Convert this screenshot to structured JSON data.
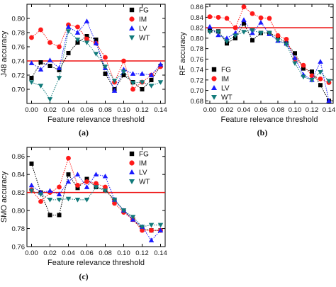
{
  "chart_data": [
    {
      "type": "line",
      "panel_label": "(a)",
      "xlabel": "Feature relevance threshold",
      "ylabel": "J48 accuracy",
      "xlim": [
        -0.005,
        0.145
      ],
      "ylim": [
        0.68,
        0.82
      ],
      "x_ticks": [
        "0.00",
        "0.02",
        "0.04",
        "0.06",
        "0.08",
        "0.10",
        "0.12",
        "0.14"
      ],
      "y_ticks": [
        "0.70",
        "0.72",
        "0.74",
        "0.76",
        "0.78",
        "0.80"
      ],
      "legend_position": "top-right",
      "x": [
        0.0,
        0.01,
        0.02,
        0.03,
        0.04,
        0.05,
        0.06,
        0.07,
        0.08,
        0.09,
        0.1,
        0.11,
        0.12,
        0.13,
        0.14
      ],
      "reference_line": 0.74,
      "series": [
        {
          "name": "FG",
          "color": "#000000",
          "marker": "square",
          "values": [
            0.716,
            0.738,
            0.733,
            0.727,
            0.751,
            0.766,
            0.775,
            0.77,
            0.722,
            0.7,
            0.72,
            0.71,
            0.7,
            0.713,
            0.733
          ]
        },
        {
          "name": "IM",
          "color": "#ff1a1a",
          "marker": "circle",
          "values": [
            0.773,
            0.784,
            0.766,
            0.76,
            0.791,
            0.788,
            0.771,
            0.765,
            0.745,
            0.71,
            0.74,
            0.7,
            0.71,
            0.72,
            0.732
          ]
        },
        {
          "name": "LV",
          "color": "#1a1aff",
          "marker": "triangle",
          "values": [
            0.737,
            0.728,
            0.741,
            0.73,
            0.788,
            0.78,
            0.796,
            0.765,
            0.73,
            0.698,
            0.728,
            0.722,
            0.722,
            0.72,
            0.735
          ]
        },
        {
          "name": "WT",
          "color": "#117a7a",
          "marker": "tri-down",
          "values": [
            0.71,
            0.705,
            0.686,
            0.716,
            0.782,
            0.77,
            0.766,
            0.75,
            0.732,
            0.712,
            0.725,
            0.709,
            0.71,
            0.705,
            0.71
          ]
        }
      ]
    },
    {
      "type": "line",
      "panel_label": "(b)",
      "xlabel": "Feature relevance threshold",
      "ylabel": "RF accuracy",
      "xlim": [
        -0.005,
        0.145
      ],
      "ylim": [
        0.675,
        0.865
      ],
      "x_ticks": [
        "0.00",
        "0.02",
        "0.04",
        "0.06",
        "0.08",
        "0.10",
        "0.12",
        "0.14"
      ],
      "y_ticks": [
        "0.68",
        "0.70",
        "0.72",
        "0.74",
        "0.76",
        "0.78",
        "0.80",
        "0.82",
        "0.84",
        "0.86"
      ],
      "legend_position": "bottom-left",
      "x": [
        0.0,
        0.01,
        0.02,
        0.03,
        0.04,
        0.05,
        0.06,
        0.07,
        0.08,
        0.09,
        0.1,
        0.11,
        0.12,
        0.13,
        0.14
      ],
      "reference_line": 0.82,
      "series": [
        {
          "name": "FG",
          "color": "#000000",
          "marker": "square",
          "values": [
            0.815,
            0.813,
            0.79,
            0.8,
            0.828,
            0.796,
            0.81,
            0.81,
            0.802,
            0.79,
            0.771,
            0.742,
            0.736,
            0.71,
            0.68
          ]
        },
        {
          "name": "IM",
          "color": "#ff1a1a",
          "marker": "circle",
          "values": [
            0.841,
            0.84,
            0.838,
            0.82,
            0.86,
            0.847,
            0.839,
            0.838,
            0.805,
            0.798,
            0.76,
            0.748,
            0.728,
            0.722,
            0.715
          ]
        },
        {
          "name": "LV",
          "color": "#1a1aff",
          "marker": "triangle",
          "values": [
            0.822,
            0.806,
            0.8,
            0.81,
            0.835,
            0.81,
            0.83,
            0.808,
            0.795,
            0.79,
            0.762,
            0.73,
            0.72,
            0.755,
            0.68
          ]
        },
        {
          "name": "WT",
          "color": "#117a7a",
          "marker": "tri-down",
          "values": [
            0.812,
            0.812,
            0.794,
            0.805,
            0.812,
            0.815,
            0.81,
            0.81,
            0.796,
            0.788,
            0.752,
            0.726,
            0.72,
            0.735,
            0.718
          ]
        }
      ]
    },
    {
      "type": "line",
      "panel_label": "(c)",
      "xlabel": "Feature relevance threshold",
      "ylabel": "SMO accuracy",
      "xlim": [
        -0.005,
        0.145
      ],
      "ylim": [
        0.76,
        0.87
      ],
      "x_ticks": [
        "0.00",
        "0.02",
        "0.04",
        "0.06",
        "0.08",
        "0.10",
        "0.12",
        "0.14"
      ],
      "y_ticks": [
        "0.76",
        "0.78",
        "0.80",
        "0.82",
        "0.84",
        "0.86"
      ],
      "legend_position": "top-right",
      "x": [
        0.0,
        0.01,
        0.02,
        0.03,
        0.04,
        0.05,
        0.06,
        0.07,
        0.08,
        0.09,
        0.1,
        0.11,
        0.12,
        0.13,
        0.14
      ],
      "reference_line": 0.82,
      "series": [
        {
          "name": "FG",
          "color": "#000000",
          "marker": "square",
          "values": [
            0.852,
            0.82,
            0.795,
            0.795,
            0.84,
            0.825,
            0.835,
            0.826,
            0.823,
            0.812,
            0.8,
            0.79,
            0.78,
            0.778,
            0.778
          ]
        },
        {
          "name": "IM",
          "color": "#ff1a1a",
          "marker": "circle",
          "values": [
            0.823,
            0.81,
            0.82,
            0.826,
            0.858,
            0.828,
            0.832,
            0.83,
            0.826,
            0.808,
            0.798,
            0.79,
            0.778,
            0.778,
            0.778
          ]
        },
        {
          "name": "LV",
          "color": "#1a1aff",
          "marker": "triangle",
          "values": [
            0.828,
            0.82,
            0.822,
            0.818,
            0.832,
            0.84,
            0.826,
            0.84,
            0.838,
            0.812,
            0.8,
            0.79,
            0.782,
            0.767,
            0.778
          ]
        },
        {
          "name": "WT",
          "color": "#117a7a",
          "marker": "tri-down",
          "values": [
            0.822,
            0.818,
            0.812,
            0.812,
            0.813,
            0.812,
            0.812,
            0.826,
            0.822,
            0.812,
            0.8,
            0.793,
            0.782,
            0.784,
            0.784
          ]
        }
      ]
    }
  ]
}
